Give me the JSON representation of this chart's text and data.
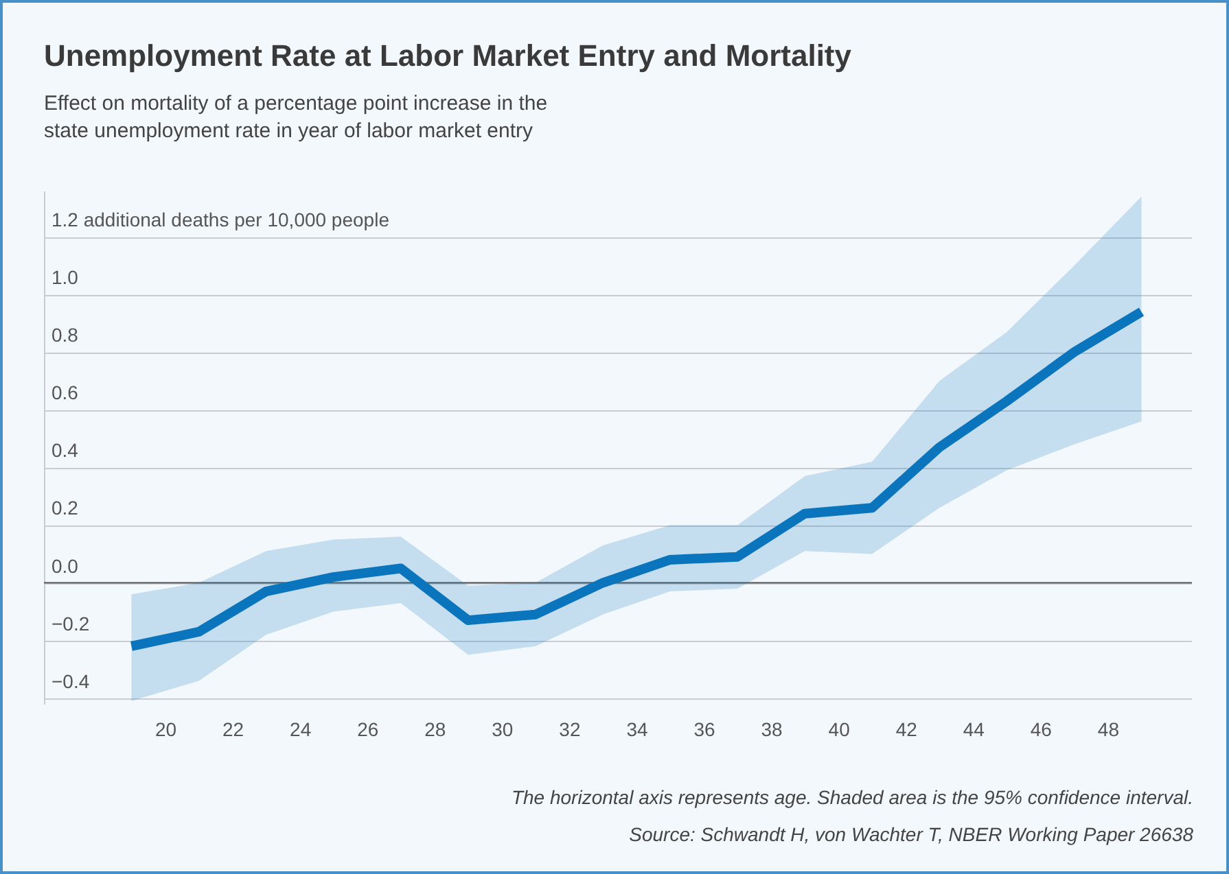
{
  "chart_data": {
    "type": "line",
    "title": "Unemployment Rate at Labor Market Entry and Mortality",
    "subtitle": "Effect on mortality of a percentage point increase in the state unemployment rate in year of labor market entry",
    "x": [
      19,
      21,
      23,
      25,
      27,
      29,
      31,
      33,
      35,
      37,
      39,
      41,
      43,
      45,
      47,
      49
    ],
    "series": [
      {
        "color": "#0a74bd",
        "values": [
          -0.22,
          -0.17,
          -0.03,
          0.02,
          0.05,
          -0.13,
          -0.11,
          0.0,
          0.08,
          0.09,
          0.24,
          0.26,
          0.47,
          0.63,
          0.8,
          0.94
        ],
        "lower": [
          -0.41,
          -0.34,
          -0.18,
          -0.1,
          -0.07,
          -0.25,
          -0.22,
          -0.11,
          -0.03,
          -0.02,
          0.11,
          0.1,
          0.26,
          0.39,
          0.48,
          0.56
        ],
        "upper": [
          -0.04,
          0.0,
          0.11,
          0.15,
          0.16,
          -0.01,
          0.0,
          0.13,
          0.2,
          0.2,
          0.37,
          0.42,
          0.7,
          0.87,
          1.1,
          1.34
        ]
      }
    ],
    "xlim": [
      16.4,
      50.5
    ],
    "xticks": [
      20,
      22,
      24,
      26,
      28,
      30,
      32,
      34,
      36,
      38,
      40,
      42,
      44,
      46,
      48
    ],
    "ylim": [
      -0.42,
      1.36
    ],
    "yticks": [
      {
        "value": -0.4,
        "label": "−0.4"
      },
      {
        "value": -0.2,
        "label": "−0.2"
      },
      {
        "value": 0,
        "label": "0.0"
      },
      {
        "value": 0.2,
        "label": "0.2"
      },
      {
        "value": 0.4,
        "label": "0.4"
      },
      {
        "value": 0.6,
        "label": "0.6"
      },
      {
        "value": 0.8,
        "label": "0.8"
      },
      {
        "value": 1.0,
        "label": "1.0"
      },
      {
        "value": 1.2,
        "label": "1.2 additional deaths per 10,000 people"
      }
    ],
    "grid": "y",
    "ref_lines": [
      {
        "axis": "y",
        "value": 0,
        "color": "#555555"
      }
    ],
    "annotations": [
      "The horizontal axis represents age. Shaded area is the 95% confidence interval.",
      "Source: Schwandt H, von Wachter T, NBER Working Paper 26638"
    ]
  }
}
